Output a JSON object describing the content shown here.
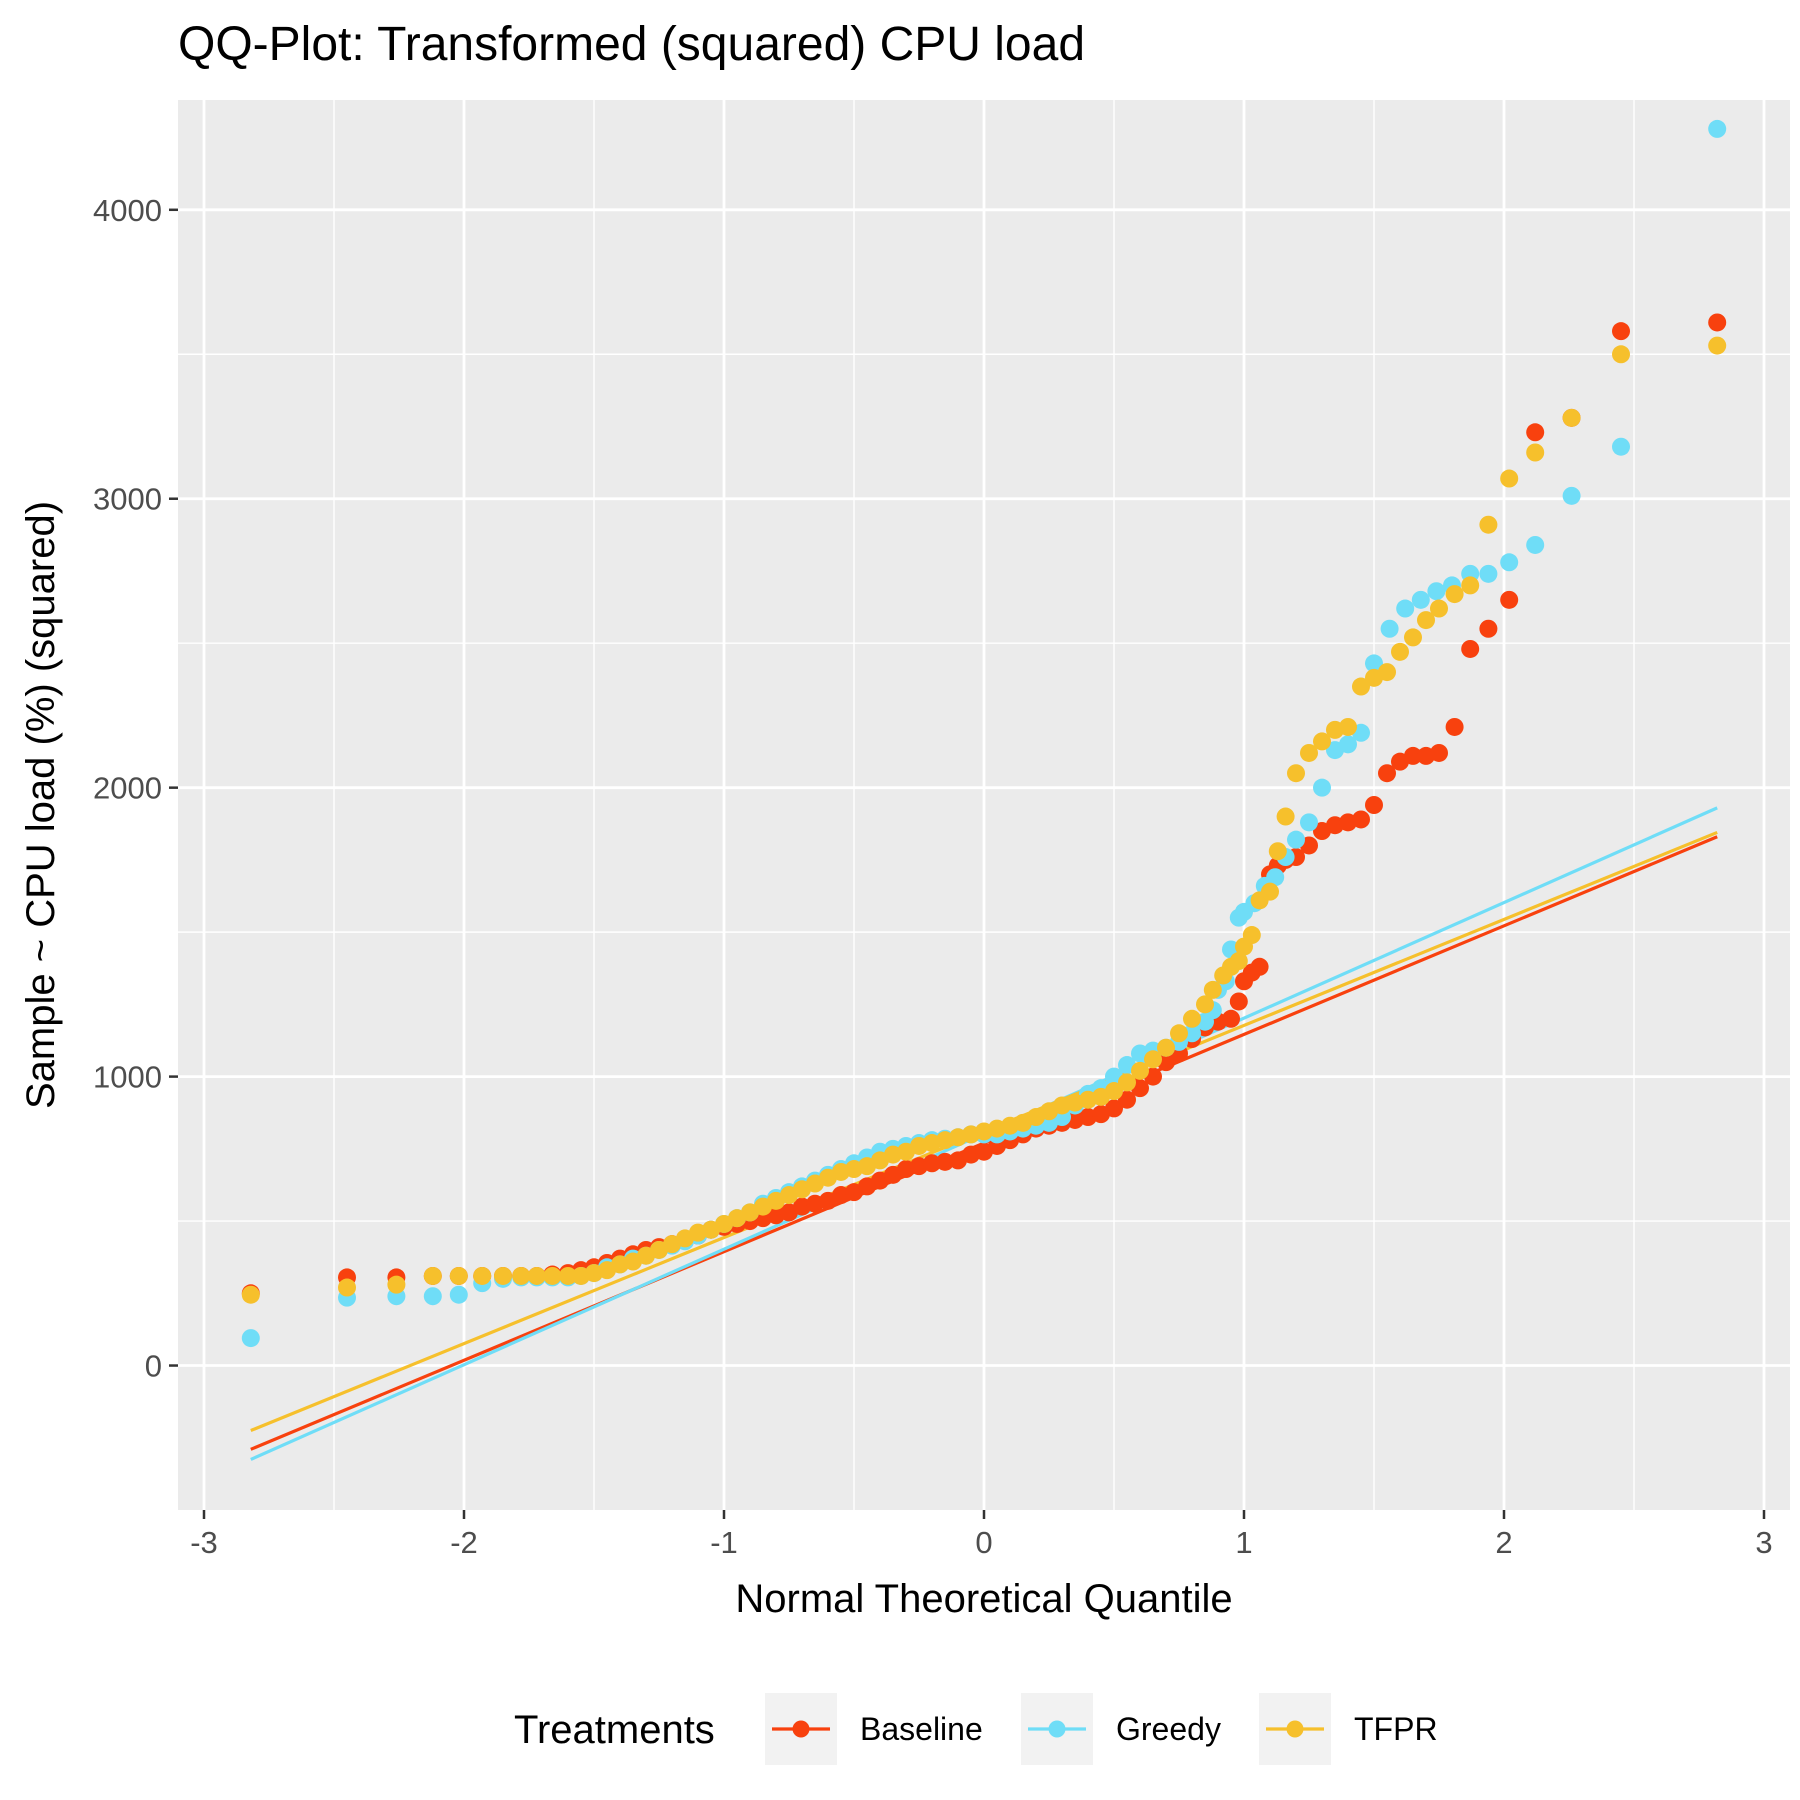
{
  "chart_data": {
    "type": "scatter",
    "title": "QQ-Plot: Transformed (squared) CPU load",
    "xlabel": "Normal Theoretical Quantile",
    "ylabel": "Sample ~ CPU load (%) (squared)",
    "xlim": [
      -3.1,
      3.1
    ],
    "ylim": [
      -500,
      4380
    ],
    "x_ticks": [
      -3,
      -2,
      -1,
      0,
      1,
      2,
      3
    ],
    "x_tick_labels": [
      "-3",
      "-2",
      "-1",
      "0",
      "1",
      "2",
      "3"
    ],
    "y_ticks": [
      0,
      1000,
      2000,
      3000,
      4000
    ],
    "y_tick_labels": [
      "0",
      "1000",
      "2000",
      "3000",
      "4000"
    ],
    "grid": true,
    "legend": {
      "title": "Treatments",
      "position": "bottom",
      "entries": [
        "Baseline",
        "Greedy",
        "TFPR"
      ]
    },
    "series": [
      {
        "name": "Baseline",
        "color": "#F8410E",
        "line": {
          "x": [
            -2.82,
            2.82
          ],
          "y": [
            -290,
            1830
          ]
        },
        "points": {
          "x": [
            -2.82,
            -2.45,
            -2.26,
            -2.12,
            -2.02,
            -1.93,
            -1.85,
            -1.78,
            -1.72,
            -1.66,
            -1.6,
            -1.55,
            -1.5,
            -1.45,
            -1.4,
            -1.35,
            -1.3,
            -1.25,
            -1.2,
            -1.15,
            -1.1,
            -1.05,
            -1.0,
            -0.95,
            -0.9,
            -0.85,
            -0.8,
            -0.75,
            -0.7,
            -0.65,
            -0.6,
            -0.55,
            -0.5,
            -0.45,
            -0.4,
            -0.35,
            -0.3,
            -0.25,
            -0.2,
            -0.15,
            -0.1,
            -0.05,
            0.0,
            0.05,
            0.1,
            0.15,
            0.2,
            0.25,
            0.3,
            0.35,
            0.4,
            0.45,
            0.5,
            0.55,
            0.6,
            0.65,
            0.7,
            0.75,
            0.8,
            0.85,
            0.9,
            0.95,
            0.98,
            1.0,
            1.03,
            1.06,
            1.1,
            1.13,
            1.16,
            1.2,
            1.25,
            1.3,
            1.35,
            1.4,
            1.45,
            1.5,
            1.55,
            1.6,
            1.65,
            1.7,
            1.75,
            1.81,
            1.87,
            1.94,
            2.02,
            2.12,
            2.26,
            2.45,
            2.82
          ],
          "y": [
            250,
            305,
            305,
            310,
            310,
            310,
            310,
            310,
            310,
            315,
            320,
            330,
            340,
            355,
            370,
            385,
            400,
            410,
            420,
            435,
            450,
            470,
            480,
            490,
            500,
            510,
            520,
            530,
            550,
            560,
            570,
            590,
            600,
            620,
            640,
            660,
            680,
            690,
            700,
            705,
            710,
            730,
            740,
            760,
            780,
            800,
            820,
            830,
            840,
            850,
            860,
            870,
            890,
            920,
            960,
            1000,
            1050,
            1080,
            1130,
            1170,
            1190,
            1200,
            1260,
            1330,
            1360,
            1380,
            1700,
            1730,
            1750,
            1760,
            1800,
            1850,
            1870,
            1880,
            1890,
            1940,
            2050,
            2090,
            2110,
            2110,
            2120,
            2210,
            2480,
            2550,
            2650,
            3230,
            3280,
            3580,
            3610
          ]
        }
      },
      {
        "name": "Greedy",
        "color": "#6FDDF7",
        "line": {
          "x": [
            -2.82,
            2.82
          ],
          "y": [
            -325,
            1930
          ]
        },
        "points": {
          "x": [
            -2.82,
            -2.45,
            -2.26,
            -2.12,
            -2.02,
            -1.93,
            -1.85,
            -1.78,
            -1.72,
            -1.66,
            -1.6,
            -1.55,
            -1.5,
            -1.45,
            -1.4,
            -1.35,
            -1.3,
            -1.25,
            -1.2,
            -1.15,
            -1.1,
            -1.05,
            -1.0,
            -0.95,
            -0.9,
            -0.85,
            -0.8,
            -0.75,
            -0.7,
            -0.65,
            -0.6,
            -0.55,
            -0.5,
            -0.45,
            -0.4,
            -0.35,
            -0.3,
            -0.25,
            -0.2,
            -0.15,
            -0.1,
            -0.05,
            0.0,
            0.05,
            0.1,
            0.15,
            0.2,
            0.25,
            0.3,
            0.35,
            0.4,
            0.45,
            0.5,
            0.55,
            0.6,
            0.65,
            0.7,
            0.75,
            0.8,
            0.85,
            0.88,
            0.9,
            0.93,
            0.95,
            0.98,
            1.0,
            1.04,
            1.08,
            1.12,
            1.16,
            1.2,
            1.25,
            1.3,
            1.35,
            1.4,
            1.45,
            1.5,
            1.56,
            1.62,
            1.68,
            1.74,
            1.8,
            1.87,
            1.94,
            2.02,
            2.12,
            2.26,
            2.45,
            2.82
          ],
          "y": [
            95,
            235,
            240,
            240,
            245,
            285,
            300,
            305,
            305,
            305,
            305,
            310,
            320,
            340,
            350,
            370,
            380,
            400,
            415,
            430,
            450,
            470,
            490,
            510,
            530,
            560,
            580,
            600,
            620,
            640,
            660,
            680,
            700,
            720,
            740,
            750,
            760,
            770,
            780,
            785,
            790,
            800,
            800,
            800,
            810,
            820,
            830,
            840,
            860,
            900,
            940,
            960,
            1000,
            1040,
            1080,
            1090,
            1100,
            1120,
            1150,
            1190,
            1230,
            1300,
            1330,
            1440,
            1550,
            1570,
            1600,
            1660,
            1690,
            1760,
            1820,
            1880,
            2000,
            2130,
            2150,
            2190,
            2430,
            2550,
            2620,
            2650,
            2680,
            2700,
            2740,
            2740,
            2780,
            2840,
            3010,
            3180,
            4280
          ]
        }
      },
      {
        "name": "TFPR",
        "color": "#F6C02C",
        "line": {
          "x": [
            -2.82,
            2.82
          ],
          "y": [
            -225,
            1845
          ]
        },
        "points": {
          "x": [
            -2.82,
            -2.45,
            -2.26,
            -2.12,
            -2.02,
            -1.93,
            -1.85,
            -1.78,
            -1.72,
            -1.66,
            -1.6,
            -1.55,
            -1.5,
            -1.45,
            -1.4,
            -1.35,
            -1.3,
            -1.25,
            -1.2,
            -1.15,
            -1.1,
            -1.05,
            -1.0,
            -0.95,
            -0.9,
            -0.85,
            -0.8,
            -0.75,
            -0.7,
            -0.65,
            -0.6,
            -0.55,
            -0.5,
            -0.45,
            -0.4,
            -0.35,
            -0.3,
            -0.25,
            -0.2,
            -0.15,
            -0.1,
            -0.05,
            0.0,
            0.05,
            0.1,
            0.15,
            0.2,
            0.25,
            0.3,
            0.35,
            0.4,
            0.45,
            0.5,
            0.55,
            0.6,
            0.65,
            0.7,
            0.75,
            0.8,
            0.85,
            0.88,
            0.92,
            0.95,
            0.98,
            1.0,
            1.03,
            1.06,
            1.1,
            1.13,
            1.16,
            1.2,
            1.25,
            1.3,
            1.35,
            1.4,
            1.45,
            1.5,
            1.55,
            1.6,
            1.65,
            1.7,
            1.75,
            1.81,
            1.87,
            1.94,
            2.02,
            2.12,
            2.26,
            2.45,
            2.82
          ],
          "y": [
            245,
            270,
            280,
            310,
            310,
            310,
            310,
            310,
            310,
            310,
            310,
            310,
            320,
            330,
            350,
            360,
            380,
            400,
            420,
            440,
            460,
            470,
            490,
            510,
            530,
            550,
            570,
            590,
            610,
            630,
            650,
            670,
            680,
            690,
            710,
            730,
            740,
            760,
            770,
            780,
            790,
            800,
            810,
            820,
            830,
            840,
            860,
            880,
            900,
            910,
            920,
            930,
            950,
            980,
            1020,
            1060,
            1100,
            1150,
            1200,
            1250,
            1300,
            1350,
            1380,
            1400,
            1450,
            1490,
            1610,
            1640,
            1780,
            1900,
            2050,
            2120,
            2160,
            2200,
            2210,
            2350,
            2380,
            2400,
            2470,
            2520,
            2580,
            2620,
            2670,
            2700,
            2910,
            3070,
            3160,
            3280,
            3500,
            3530
          ]
        }
      }
    ]
  }
}
